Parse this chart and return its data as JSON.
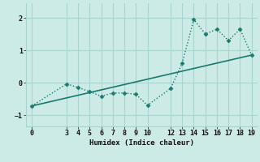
{
  "xlabel": "Humidex (Indice chaleur)",
  "bg_color": "#cceae6",
  "grid_color": "#aad4cf",
  "line_color": "#1a7a6e",
  "xlim": [
    -0.5,
    19.5
  ],
  "ylim": [
    -1.35,
    2.45
  ],
  "yticks": [
    -1,
    0,
    1,
    2
  ],
  "xticks": [
    0,
    3,
    4,
    5,
    6,
    7,
    8,
    9,
    10,
    12,
    13,
    14,
    15,
    16,
    17,
    18,
    19
  ],
  "trend_x": [
    0,
    19
  ],
  "trend_y": [
    -0.72,
    0.85
  ],
  "data_x": [
    0,
    3,
    4,
    5,
    6,
    7,
    8,
    9,
    10,
    12,
    13,
    14,
    15,
    16,
    17,
    18,
    19
  ],
  "data_y": [
    -0.72,
    -0.04,
    -0.15,
    -0.28,
    -0.42,
    -0.32,
    -0.32,
    -0.36,
    -0.7,
    -0.18,
    0.6,
    1.95,
    1.5,
    1.65,
    1.3,
    1.65,
    0.85
  ]
}
